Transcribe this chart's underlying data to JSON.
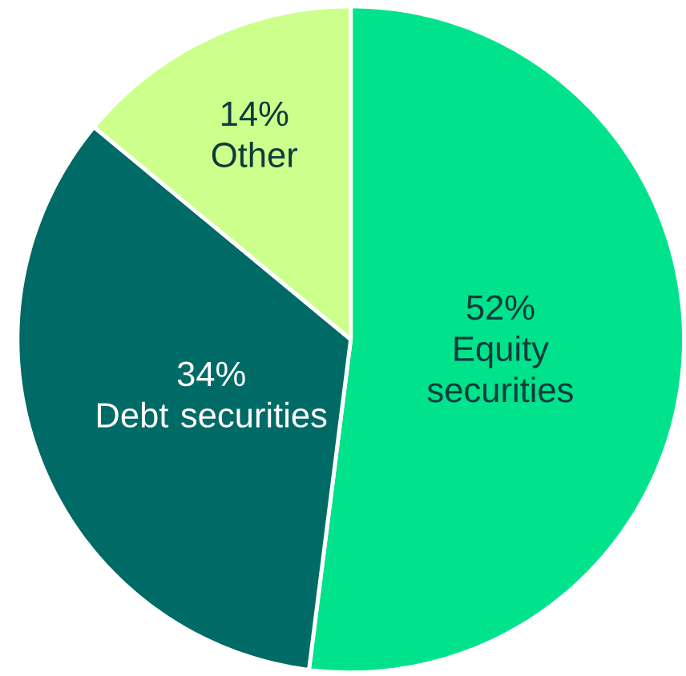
{
  "chart_data": {
    "type": "pie",
    "categories": [
      "Equity securities",
      "Debt securities",
      "Other"
    ],
    "values": [
      52,
      34,
      14
    ],
    "value_labels": [
      "52%",
      "34%",
      "14%"
    ],
    "colors": [
      "#00e38c",
      "#006b66",
      "#ccff8c"
    ]
  }
}
